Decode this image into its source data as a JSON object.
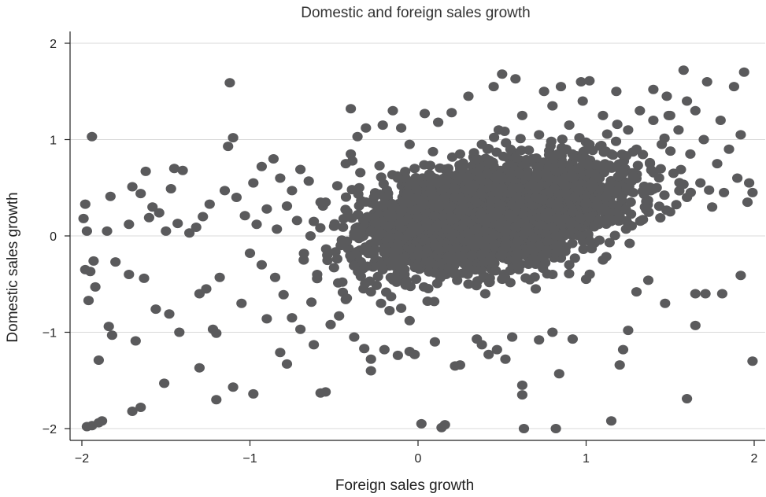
{
  "chart_data": {
    "type": "scatter",
    "title": "Domestic and foreign sales growth",
    "xlabel": "Foreign sales growth",
    "ylabel": "Domestic sales growth",
    "xlim": [
      -2,
      2
    ],
    "ylim": [
      -2,
      2
    ],
    "xticks": [
      "−2",
      "−1",
      "0",
      "1",
      "2"
    ],
    "yticks": [
      "2",
      "1",
      "0",
      "−1",
      "−2"
    ],
    "grid": true,
    "marker_color": "#5a5a5c",
    "series": [
      {
        "points": [
          [
            -1.94,
            1.03
          ],
          [
            -1.12,
            1.59
          ],
          [
            -1.1,
            1.02
          ],
          [
            -1.13,
            0.93
          ],
          [
            -1.98,
            0.33
          ],
          [
            -1.99,
            0.18
          ],
          [
            -1.97,
            0.05
          ],
          [
            -1.98,
            -0.35
          ],
          [
            -1.95,
            -0.37
          ],
          [
            -1.93,
            -0.26
          ],
          [
            -1.96,
            -0.67
          ],
          [
            -1.92,
            -0.53
          ],
          [
            -1.9,
            -1.29
          ],
          [
            -1.97,
            -1.98
          ],
          [
            -1.94,
            -1.97
          ],
          [
            -1.9,
            -1.94
          ],
          [
            -1.88,
            -1.92
          ],
          [
            -1.7,
            -1.82
          ],
          [
            -1.65,
            -1.78
          ],
          [
            -1.51,
            -1.53
          ],
          [
            -1.84,
            -0.94
          ],
          [
            -1.82,
            -1.03
          ],
          [
            -1.68,
            -1.09
          ],
          [
            -1.83,
            0.41
          ],
          [
            -1.7,
            0.51
          ],
          [
            -1.65,
            0.44
          ],
          [
            -1.62,
            0.67
          ],
          [
            -1.45,
            0.7
          ],
          [
            -1.4,
            0.68
          ],
          [
            -1.47,
            0.49
          ],
          [
            -1.54,
            0.24
          ],
          [
            -1.58,
            0.3
          ],
          [
            -1.85,
            0.05
          ],
          [
            -1.72,
            0.12
          ],
          [
            -1.6,
            0.19
          ],
          [
            -1.5,
            0.05
          ],
          [
            -1.43,
            0.13
          ],
          [
            -1.8,
            -0.27
          ],
          [
            -1.72,
            -0.4
          ],
          [
            -1.63,
            -0.44
          ],
          [
            -1.56,
            -0.76
          ],
          [
            -1.48,
            -0.81
          ],
          [
            -1.42,
            -1.0
          ],
          [
            -1.3,
            -1.37
          ],
          [
            -1.2,
            -1.7
          ],
          [
            -1.1,
            -1.57
          ],
          [
            -0.98,
            -1.64
          ],
          [
            -1.22,
            -0.97
          ],
          [
            -1.2,
            -1.01
          ],
          [
            -1.3,
            -0.6
          ],
          [
            -1.26,
            -0.55
          ],
          [
            -1.18,
            -0.43
          ],
          [
            -1.05,
            -0.7
          ],
          [
            -1.36,
            0.03
          ],
          [
            -1.32,
            0.09
          ],
          [
            -1.28,
            0.2
          ],
          [
            -1.24,
            0.33
          ],
          [
            -1.15,
            0.47
          ],
          [
            -1.08,
            0.4
          ],
          [
            -0.98,
            0.55
          ],
          [
            -0.93,
            0.72
          ],
          [
            -0.86,
            0.8
          ],
          [
            -0.82,
            0.6
          ],
          [
            -0.75,
            0.47
          ],
          [
            -0.7,
            0.69
          ],
          [
            -0.65,
            0.57
          ],
          [
            -1.03,
            0.21
          ],
          [
            -0.96,
            0.12
          ],
          [
            -0.9,
            0.28
          ],
          [
            -0.84,
            0.07
          ],
          [
            -0.78,
            0.31
          ],
          [
            -0.72,
            0.16
          ],
          [
            -1.0,
            -0.18
          ],
          [
            -0.93,
            -0.3
          ],
          [
            -0.85,
            -0.43
          ],
          [
            -0.8,
            -0.61
          ],
          [
            -0.75,
            -0.85
          ],
          [
            -0.9,
            -0.86
          ],
          [
            -0.82,
            -1.21
          ],
          [
            -0.78,
            -1.33
          ],
          [
            -0.7,
            -0.97
          ],
          [
            -0.62,
            -1.13
          ],
          [
            -0.55,
            -1.62
          ],
          [
            -0.58,
            -1.63
          ],
          [
            -0.52,
            -0.92
          ],
          [
            -0.47,
            -0.83
          ],
          [
            -0.43,
            -0.66
          ],
          [
            -0.38,
            -1.05
          ],
          [
            -0.32,
            -1.17
          ],
          [
            -0.28,
            -1.28
          ],
          [
            -0.28,
            -1.4
          ],
          [
            -0.2,
            -1.18
          ],
          [
            -0.12,
            -1.24
          ],
          [
            -0.05,
            -1.2
          ],
          [
            -0.02,
            -1.23
          ],
          [
            -0.62,
            0.15
          ],
          [
            -0.55,
            0.35
          ],
          [
            -0.48,
            0.52
          ],
          [
            -0.43,
            0.75
          ],
          [
            -0.4,
            0.85
          ],
          [
            -0.36,
            1.03
          ],
          [
            -0.31,
            1.12
          ],
          [
            -0.4,
            1.32
          ],
          [
            -0.21,
            1.15
          ],
          [
            -0.15,
            1.3
          ],
          [
            -0.1,
            1.12
          ],
          [
            -0.05,
            0.95
          ],
          [
            0.04,
            1.27
          ],
          [
            -0.5,
            -0.33
          ],
          [
            -0.45,
            -0.48
          ],
          [
            -0.4,
            -0.21
          ],
          [
            -0.34,
            -0.42
          ],
          [
            -0.28,
            -0.58
          ],
          [
            -0.22,
            -0.7
          ],
          [
            -0.16,
            -0.63
          ],
          [
            -0.1,
            -0.75
          ],
          [
            -0.05,
            -0.88
          ],
          [
            0.02,
            -1.95
          ],
          [
            0.14,
            -1.99
          ],
          [
            0.16,
            -1.96
          ],
          [
            0.1,
            -1.1
          ],
          [
            0.22,
            -1.35
          ],
          [
            0.25,
            -1.34
          ],
          [
            0.35,
            -1.07
          ],
          [
            0.38,
            -1.13
          ],
          [
            0.42,
            -1.23
          ],
          [
            0.47,
            -1.18
          ],
          [
            0.52,
            -1.28
          ],
          [
            0.56,
            -1.05
          ],
          [
            0.62,
            -1.55
          ],
          [
            0.62,
            -1.65
          ],
          [
            0.63,
            -2.0
          ],
          [
            0.82,
            -2.0
          ],
          [
            0.84,
            -1.43
          ],
          [
            0.8,
            -1.0
          ],
          [
            0.72,
            -1.08
          ],
          [
            0.92,
            -1.07
          ],
          [
            1.15,
            -1.92
          ],
          [
            1.2,
            -1.34
          ],
          [
            1.22,
            -1.18
          ],
          [
            1.25,
            -0.98
          ],
          [
            1.3,
            -0.58
          ],
          [
            1.37,
            -0.46
          ],
          [
            1.47,
            -0.7
          ],
          [
            1.6,
            -1.69
          ],
          [
            1.65,
            -0.93
          ],
          [
            1.65,
            -0.6
          ],
          [
            1.71,
            -0.6
          ],
          [
            1.81,
            -0.6
          ],
          [
            1.92,
            -0.41
          ],
          [
            1.99,
            -1.3
          ],
          [
            0.02,
            0.3
          ],
          [
            0.05,
            0.1
          ],
          [
            0.08,
            0.45
          ],
          [
            0.1,
            -0.1
          ],
          [
            0.12,
            0.55
          ],
          [
            0.15,
            0.2
          ],
          [
            0.18,
            0.7
          ],
          [
            0.2,
            0.0
          ],
          [
            0.22,
            0.4
          ],
          [
            0.25,
            0.85
          ],
          [
            0.28,
            0.15
          ],
          [
            0.3,
            0.6
          ],
          [
            0.32,
            -0.2
          ],
          [
            0.35,
            0.35
          ],
          [
            0.38,
            0.95
          ],
          [
            0.4,
            0.05
          ],
          [
            0.42,
            0.75
          ],
          [
            0.45,
            0.25
          ],
          [
            0.48,
            1.1
          ],
          [
            0.5,
            0.5
          ],
          [
            0.52,
            -0.1
          ],
          [
            0.55,
            0.9
          ],
          [
            0.58,
            0.3
          ],
          [
            0.6,
            0.65
          ],
          [
            0.62,
            1.25
          ],
          [
            0.65,
            0.1
          ],
          [
            0.68,
            0.8
          ],
          [
            0.7,
            0.4
          ],
          [
            0.72,
            1.05
          ],
          [
            0.75,
            0.2
          ],
          [
            0.78,
            0.6
          ],
          [
            0.8,
            1.35
          ],
          [
            0.82,
            0.0
          ],
          [
            0.85,
            0.85
          ],
          [
            0.88,
            0.45
          ],
          [
            0.9,
            1.15
          ],
          [
            0.92,
            0.25
          ],
          [
            0.95,
            0.7
          ],
          [
            0.98,
            1.4
          ],
          [
            1.0,
            0.35
          ],
          [
            1.02,
            0.95
          ],
          [
            1.05,
            0.1
          ],
          [
            1.08,
            0.6
          ],
          [
            1.1,
            1.25
          ],
          [
            1.12,
            0.4
          ],
          [
            1.15,
            0.85
          ],
          [
            1.18,
            1.5
          ],
          [
            1.2,
            0.2
          ],
          [
            1.22,
            0.65
          ],
          [
            1.25,
            1.1
          ],
          [
            1.28,
            0.45
          ],
          [
            1.3,
            0.9
          ],
          [
            1.32,
            1.3
          ],
          [
            1.35,
            0.3
          ],
          [
            1.38,
            0.75
          ],
          [
            1.4,
            1.2
          ],
          [
            1.42,
            0.5
          ],
          [
            1.45,
            0.95
          ],
          [
            1.48,
            1.45
          ],
          [
            1.5,
            0.25
          ],
          [
            1.52,
            0.65
          ],
          [
            1.55,
            1.1
          ],
          [
            1.58,
            1.72
          ],
          [
            1.6,
            0.4
          ],
          [
            1.62,
            0.85
          ],
          [
            1.65,
            1.3
          ],
          [
            1.68,
            0.55
          ],
          [
            1.7,
            1.0
          ],
          [
            1.72,
            1.6
          ],
          [
            1.75,
            0.3
          ],
          [
            1.78,
            0.75
          ],
          [
            1.8,
            1.2
          ],
          [
            1.82,
            0.45
          ],
          [
            1.85,
            0.9
          ],
          [
            1.88,
            1.55
          ],
          [
            1.9,
            0.6
          ],
          [
            1.92,
            1.05
          ],
          [
            1.94,
            1.7
          ],
          [
            1.96,
            0.35
          ],
          [
            1.97,
            0.55
          ],
          [
            1.99,
            0.45
          ],
          [
            -0.3,
            0.2
          ],
          [
            -0.25,
            -0.05
          ],
          [
            -0.2,
            0.4
          ],
          [
            -0.18,
            0.1
          ],
          [
            -0.15,
            -0.25
          ],
          [
            -0.12,
            0.6
          ],
          [
            -0.1,
            0.25
          ],
          [
            -0.08,
            -0.4
          ],
          [
            -0.06,
            0.45
          ],
          [
            -0.04,
            0.05
          ],
          [
            -0.02,
            0.7
          ],
          [
            0.0,
            -0.2
          ],
          [
            -0.35,
            0.5
          ],
          [
            -0.32,
            -0.15
          ],
          [
            -0.28,
            0.05
          ],
          [
            -0.24,
            0.3
          ],
          [
            -0.22,
            -0.3
          ],
          [
            -0.38,
            0.0
          ],
          [
            -0.42,
            0.25
          ],
          [
            -0.46,
            -0.1
          ],
          [
            -0.5,
            0.1
          ],
          [
            -0.54,
            -0.2
          ],
          [
            -0.58,
            0.35
          ],
          [
            -0.6,
            -0.4
          ],
          [
            -0.64,
            0.0
          ],
          [
            -0.68,
            -0.25
          ],
          [
            0.3,
            -0.5
          ],
          [
            0.4,
            -0.6
          ],
          [
            0.5,
            -0.45
          ],
          [
            0.6,
            -0.35
          ],
          [
            0.7,
            -0.55
          ],
          [
            0.8,
            -0.4
          ],
          [
            0.9,
            -0.3
          ],
          [
            1.0,
            -0.45
          ],
          [
            1.1,
            -0.25
          ],
          [
            0.45,
            1.55
          ],
          [
            0.5,
            1.68
          ],
          [
            0.58,
            1.63
          ],
          [
            0.75,
            1.5
          ],
          [
            0.85,
            1.55
          ],
          [
            0.97,
            1.6
          ],
          [
            1.02,
            1.61
          ],
          [
            1.4,
            1.52
          ],
          [
            1.5,
            1.25
          ],
          [
            1.6,
            1.4
          ],
          [
            0.3,
            1.45
          ],
          [
            0.2,
            1.28
          ],
          [
            0.12,
            1.18
          ]
        ]
      }
    ]
  }
}
